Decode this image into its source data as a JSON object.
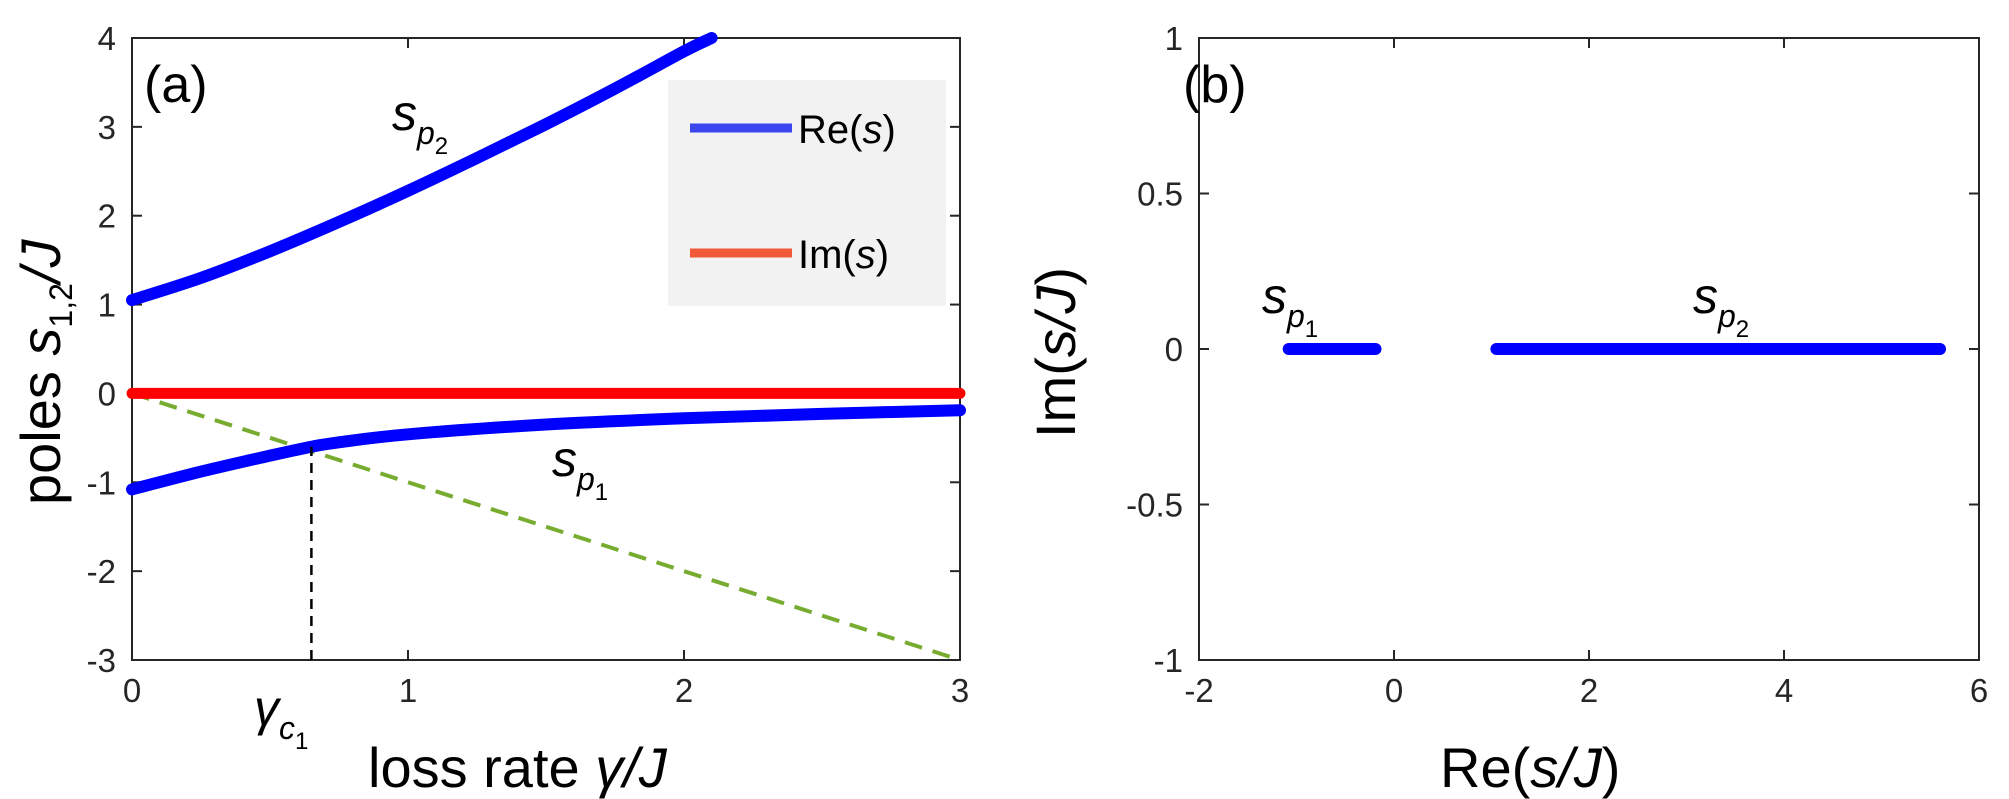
{
  "chart_data": [
    {
      "panel": "(a)",
      "type": "line",
      "xlabel": "loss rate γ/J",
      "ylabel": "poles s_{1,2}/J",
      "xlim": [
        0,
        3
      ],
      "ylim": [
        -3,
        4
      ],
      "xticks": [
        "0",
        "1",
        "2",
        "3"
      ],
      "yticks": [
        "-3",
        "-2",
        "-1",
        "0",
        "1",
        "2",
        "3",
        "4"
      ],
      "legend": {
        "position": "top-right",
        "entries": [
          "Re(s)",
          "Im(s)"
        ]
      },
      "series": [
        {
          "name": "Re(s) s_p2",
          "color": "#0000ff",
          "x": [
            0,
            0.25,
            0.5,
            0.75,
            1.0,
            1.25,
            1.5,
            1.75,
            2.0,
            2.1
          ],
          "y": [
            1.05,
            1.3,
            1.6,
            1.93,
            2.28,
            2.65,
            3.03,
            3.43,
            3.85,
            4.0
          ]
        },
        {
          "name": "Re(s) s_p1",
          "color": "#0000ff",
          "x": [
            0,
            0.25,
            0.5,
            0.65,
            0.75,
            1.0,
            1.5,
            2.0,
            2.5,
            3.0
          ],
          "y": [
            -1.08,
            -0.88,
            -0.7,
            -0.6,
            -0.55,
            -0.46,
            -0.35,
            -0.28,
            -0.23,
            -0.19
          ]
        },
        {
          "name": "Im(s)",
          "color": "#ff0000",
          "x": [
            0,
            3
          ],
          "y": [
            0,
            0
          ]
        },
        {
          "name": "y = -γ",
          "color": "#77ac30",
          "style": "dashed",
          "x": [
            0,
            3
          ],
          "y": [
            0,
            -3
          ]
        }
      ],
      "annotations": [
        {
          "label": "γc1",
          "x": 0.65,
          "style": "vertical-dashed",
          "from_y": -3,
          "to_y": -0.6
        },
        {
          "label": "s_p2",
          "x": 0.7,
          "y": 3.0
        },
        {
          "label": "s_p1",
          "x": 1.65,
          "y": -1.1
        }
      ],
      "text": {
        "panel_label": "(a)",
        "xlabel_prefix": "loss rate ",
        "xlabel_gamma": "γ",
        "xlabel_suffix": "/J",
        "ylabel_prefix": "poles ",
        "ylabel_s": "s",
        "ylabel_sub": "1,2",
        "ylabel_suffix": "/J",
        "legend_re_prefix": "Re(",
        "legend_re_var": "s",
        "legend_re_suffix": ")",
        "legend_im_prefix": "Im(",
        "legend_im_var": "s",
        "legend_im_suffix": ")",
        "sp2_main": "s",
        "sp2_sub": "p",
        "sp2_subsub": "2",
        "sp1_main": "s",
        "sp1_sub": "p",
        "sp1_subsub": "1",
        "gamma_main": "γ",
        "gamma_sub": "c",
        "gamma_subsub": "1"
      }
    },
    {
      "panel": "(b)",
      "type": "line",
      "xlabel": "Re(s/J)",
      "ylabel": "Im(s/J)",
      "xlim": [
        -2,
        6
      ],
      "ylim": [
        -1,
        1
      ],
      "xticks": [
        "-2",
        "0",
        "2",
        "4",
        "6"
      ],
      "yticks": [
        "-1",
        "-0.5",
        "0",
        "0.5",
        "1"
      ],
      "series": [
        {
          "name": "s_p1",
          "color": "#0000ff",
          "x": [
            -1.08,
            -0.19
          ],
          "y": [
            0,
            0
          ]
        },
        {
          "name": "s_p2",
          "color": "#0000ff",
          "x": [
            1.05,
            5.6
          ],
          "y": [
            0,
            0
          ]
        }
      ],
      "annotations": [
        {
          "label": "s_p1",
          "x": -0.7,
          "y": 0.1
        },
        {
          "label": "s_p2",
          "x": 3.35,
          "y": 0.1
        }
      ],
      "text": {
        "panel_label": "(b)",
        "xlabel_prefix": "Re(",
        "xlabel_var": "s/J",
        "xlabel_suffix": ")",
        "ylabel_prefix": "Im(",
        "ylabel_var": "s/J",
        "ylabel_suffix": ")",
        "sp1_main": "s",
        "sp1_sub": "p",
        "sp1_subsub": "1",
        "sp2_main": "s",
        "sp2_sub": "p",
        "sp2_subsub": "2"
      }
    }
  ]
}
